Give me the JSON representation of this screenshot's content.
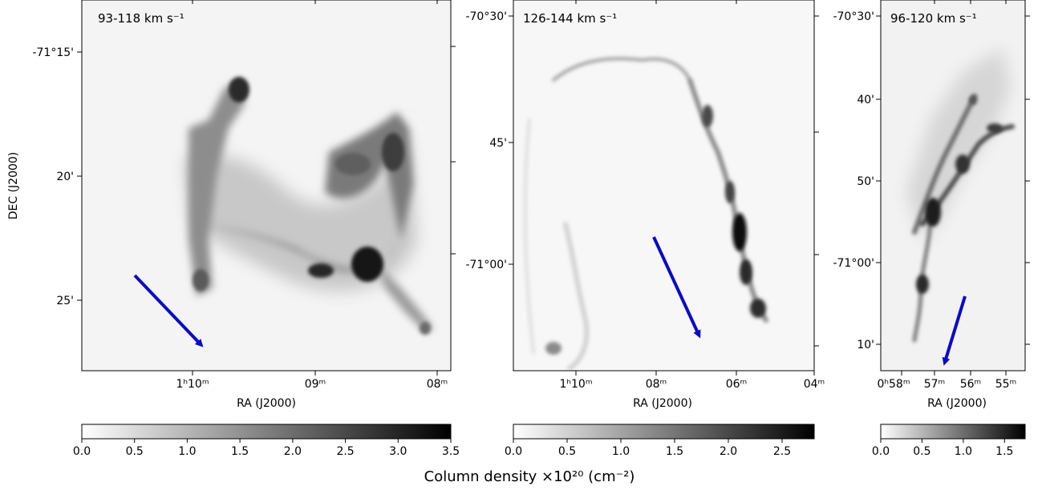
{
  "chart_data": [
    {
      "type": "heatmap",
      "panel_label": "93-118 km s⁻¹",
      "xlabel": "RA (J2000)",
      "ylabel": "DEC (J2000)",
      "x_ticks": [
        "1ʰ10ᵐ",
        "09ᵐ",
        "08ᵐ"
      ],
      "y_ticks": [
        "-71°15'",
        "20'",
        "25'"
      ],
      "colorbar": {
        "ticks": [
          "0.0",
          "0.5",
          "1.0",
          "1.5",
          "2.0",
          "2.5",
          "3.0",
          "3.5"
        ],
        "range": [
          0,
          3.5
        ]
      },
      "arrow": "blue arrow pointing lower-right"
    },
    {
      "type": "heatmap",
      "panel_label": "126-144 km s⁻¹",
      "xlabel": "RA (J2000)",
      "x_ticks": [
        "1ʰ10ᵐ",
        "08ᵐ",
        "06ᵐ",
        "04ᵐ"
      ],
      "y_ticks": [
        "-70°30'",
        "45'",
        "-71°00'"
      ],
      "colorbar": {
        "ticks": [
          "0.0",
          "0.5",
          "1.0",
          "1.5",
          "2.0",
          "2.5"
        ],
        "range": [
          0,
          2.8
        ]
      },
      "arrow": "blue arrow pointing down-right"
    },
    {
      "type": "heatmap",
      "panel_label": "96-120 km s⁻¹",
      "xlabel": "RA (J2000)",
      "x_ticks": [
        "0ʰ58ᵐ",
        "57ᵐ",
        "56ᵐ",
        "55ᵐ"
      ],
      "y_ticks": [
        "-70°30'",
        "40'",
        "50'",
        "-71°00'",
        "10'"
      ],
      "colorbar": {
        "ticks": [
          "0.0",
          "0.5",
          "1.0",
          "1.5"
        ],
        "range": [
          0,
          1.75
        ]
      },
      "arrow": "blue arrow pointing down-left"
    }
  ],
  "colorbar_label": "Column density ×10²⁰ (cm⁻²)",
  "colors": {
    "arrow": "#0a0ac8",
    "cmap_low": "#ffffff",
    "cmap_high": "#000000"
  }
}
